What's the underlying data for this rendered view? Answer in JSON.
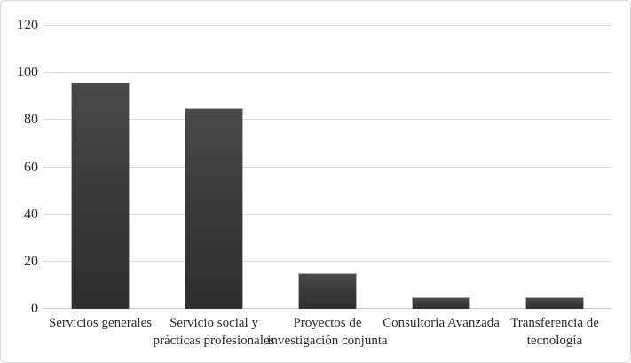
{
  "chart_data": {
    "type": "bar",
    "categories": [
      "Servicios generales",
      "Servicio social y prácticas profesionales",
      "Proyectos de investigación conjunta",
      "Consultoría Avanzada",
      "Transferencia de tecnología"
    ],
    "values": [
      96,
      85,
      15,
      5,
      5
    ],
    "title": "",
    "xlabel": "",
    "ylabel": "",
    "ylim": [
      0,
      120
    ],
    "ytick_step": 20,
    "ytick_labels": [
      "0",
      "20",
      "40",
      "60",
      "80",
      "100",
      "120"
    ],
    "grid": true,
    "legend": false,
    "colors": {
      "bar_top": "#4a4a4a",
      "bar_mid": "#383838",
      "bar_bottom": "#2f2f2f",
      "bar_border": "#b0b0b0",
      "gridline": "#d9d9d9",
      "axis_line": "#c9c9c9",
      "text": "#2b2b2b",
      "frame_border": "#d9d9d9",
      "background": "#ffffff"
    }
  }
}
